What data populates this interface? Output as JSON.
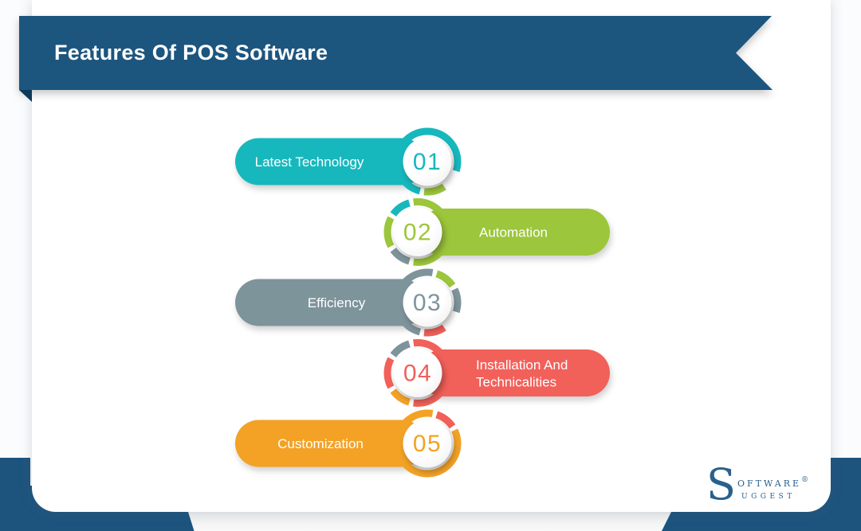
{
  "banner": {
    "title": "Features Of POS Software",
    "color": "#1d547e",
    "fold_color": "#0e3a5a"
  },
  "items": [
    {
      "number": "01",
      "label": "Latest Technology",
      "color": "#16b8bd",
      "side": "left"
    },
    {
      "number": "02",
      "label": "Automation",
      "color": "#9cc63b",
      "side": "right"
    },
    {
      "number": "03",
      "label": "Efficiency",
      "color": "#7e949b",
      "side": "left"
    },
    {
      "number": "04",
      "label": "Installation And\nTechnicalities",
      "color": "#f2605a",
      "side": "right"
    },
    {
      "number": "05",
      "label": "Customization",
      "color": "#f3a226",
      "side": "left"
    }
  ],
  "logo": {
    "big_letter": "S",
    "word_top": "oftware",
    "word_bottom": "uggest",
    "registered": "®",
    "color": "#2a608c"
  },
  "colors": {
    "accent": "#1d547e",
    "card_bg": "#ffffff",
    "page_bg": "#fbfcfd",
    "label_text": "#ffffff"
  }
}
